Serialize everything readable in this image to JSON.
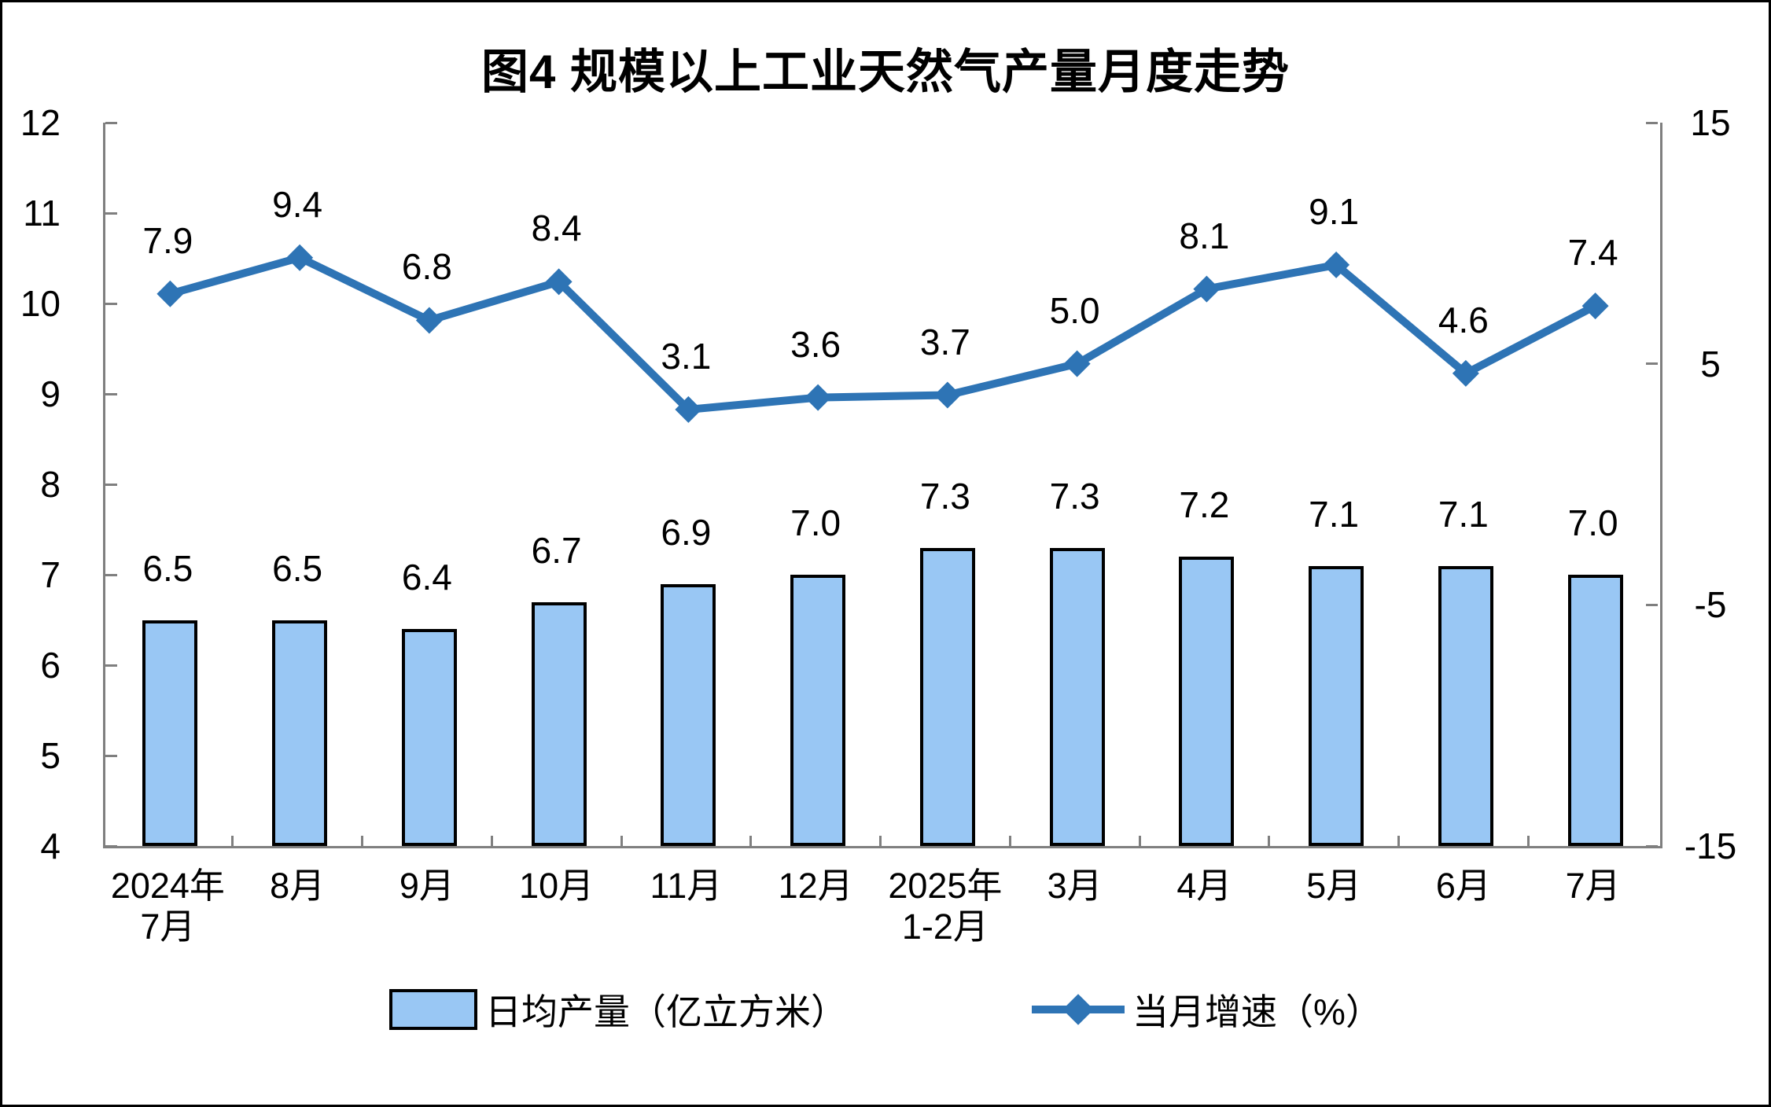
{
  "chart_data": {
    "type": "bar+line",
    "title": "图4  规模以上工业天然气产量月度走势",
    "categories": [
      [
        "2024年",
        "7月"
      ],
      [
        "8月"
      ],
      [
        "9月"
      ],
      [
        "10月"
      ],
      [
        "11月"
      ],
      [
        "12月"
      ],
      [
        "2025年",
        "1-2月"
      ],
      [
        "3月"
      ],
      [
        "4月"
      ],
      [
        "5月"
      ],
      [
        "6月"
      ],
      [
        "7月"
      ]
    ],
    "series": [
      {
        "name": "日均产量（亿立方米）",
        "type": "bar",
        "axis": "left",
        "values": [
          6.5,
          6.5,
          6.4,
          6.7,
          6.9,
          7.0,
          7.3,
          7.3,
          7.2,
          7.1,
          7.1,
          7.0
        ]
      },
      {
        "name": "当月增速（%）",
        "type": "line",
        "axis": "right",
        "values": [
          7.9,
          9.4,
          6.8,
          8.4,
          3.1,
          3.6,
          3.7,
          5.0,
          8.1,
          9.1,
          4.6,
          7.4
        ]
      }
    ],
    "axes": {
      "left": {
        "min": 4,
        "max": 12,
        "tick_labels": [
          "12",
          "11",
          "10",
          "9",
          "8",
          "7",
          "6",
          "5",
          "4"
        ]
      },
      "right": {
        "min": -15,
        "max": 15,
        "tick_labels": [
          "15",
          "5",
          "-5",
          "-15"
        ]
      }
    },
    "grid": false,
    "legend_position": "bottom",
    "value_label_decimals": 1,
    "colors": {
      "bar_fill": "#99C7F4",
      "bar_border": "#000000",
      "line": "#2E74B5",
      "axis": "#7F7F7F",
      "text": "#000000"
    }
  }
}
